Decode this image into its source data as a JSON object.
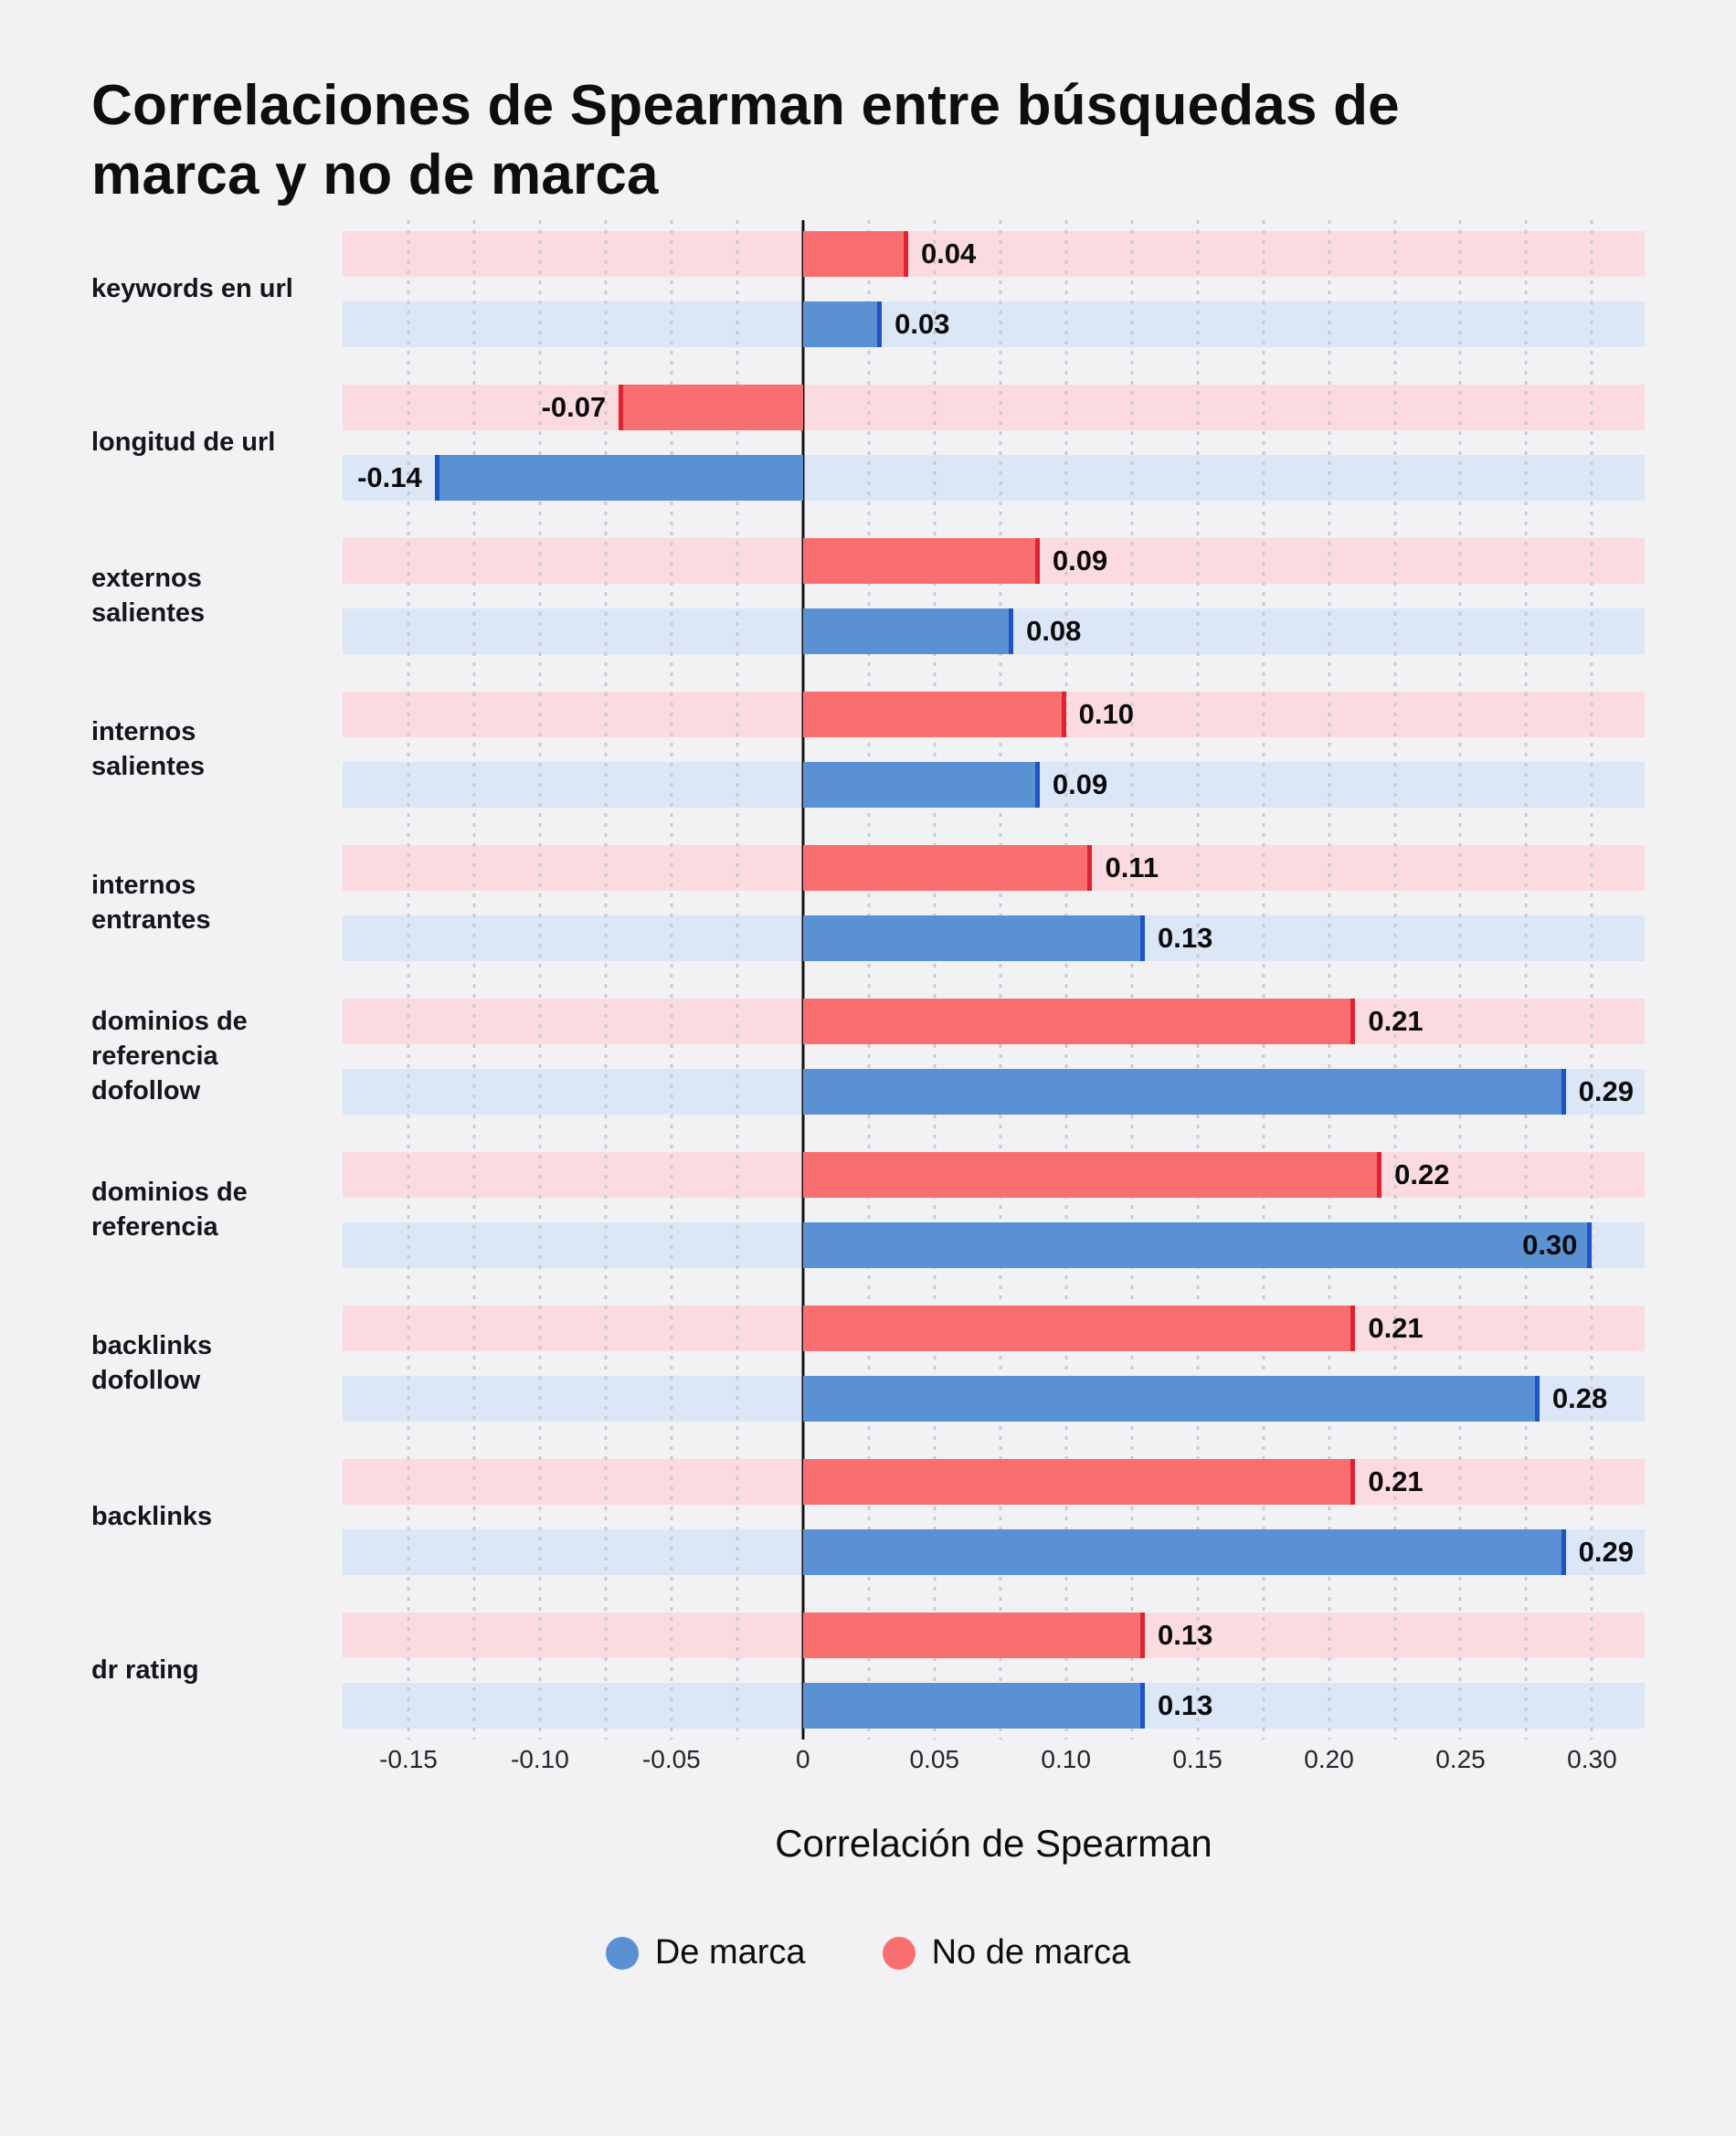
{
  "title": "Correlaciones de Spearman entre búsquedas de\nmarca y no de marca",
  "xlabel": "Correlación de Spearman",
  "legend": [
    {
      "label": "De marca",
      "color": "#5a91d2"
    },
    {
      "label": "No de marca",
      "color": "#f96e6e"
    }
  ],
  "colors": {
    "background": "#f2f2f5",
    "track_pink": "#fbdbe0",
    "track_blue": "#dbe7f7",
    "bar_red": "#f96e6e",
    "bar_red_edge": "#e02330",
    "bar_blue": "#5a91d2",
    "bar_blue_edge": "#1d55c6",
    "zero_line": "#141414",
    "gridline": "#c9cad3"
  },
  "chart_data": {
    "type": "bar",
    "orientation": "horizontal",
    "title": "Correlaciones de Spearman entre búsquedas de marca y no de marca",
    "xlabel": "Correlación de Spearman",
    "ylabel": "",
    "xlim": [
      -0.175,
      0.32
    ],
    "grid": "dotted-vertical",
    "grid_range": [
      -0.15,
      0.3
    ],
    "grid_step": 0.025,
    "legend_position": "bottom",
    "categories": [
      "keywords en url",
      "longitud de url",
      "externos\nsalientes",
      "internos\nsalientes",
      "internos\nentrantes",
      "dominios de\nreferencia\ndofollow",
      "dominios de\nreferencia",
      "backlinks\ndofollow",
      "backlinks",
      "dr rating"
    ],
    "series": [
      {
        "name": "No de marca",
        "slug": "no-de-marca",
        "color": "#f96e6e",
        "edge_color": "#e02330",
        "track_color": "#fbdbe0",
        "values": [
          0.04,
          -0.07,
          0.09,
          0.1,
          0.11,
          0.21,
          0.22,
          0.21,
          0.21,
          0.13
        ]
      },
      {
        "name": "De marca",
        "slug": "de-marca",
        "color": "#5a91d2",
        "edge_color": "#1d55c6",
        "track_color": "#dbe7f7",
        "values": [
          0.03,
          -0.14,
          0.08,
          0.09,
          0.13,
          0.29,
          0.3,
          0.28,
          0.29,
          0.13
        ]
      }
    ],
    "xticks": [
      "-0.15",
      "-0.10",
      "-0.05",
      "0",
      "0.05",
      "0.10",
      "0.15",
      "0.20",
      "0.25",
      "0.30"
    ]
  }
}
